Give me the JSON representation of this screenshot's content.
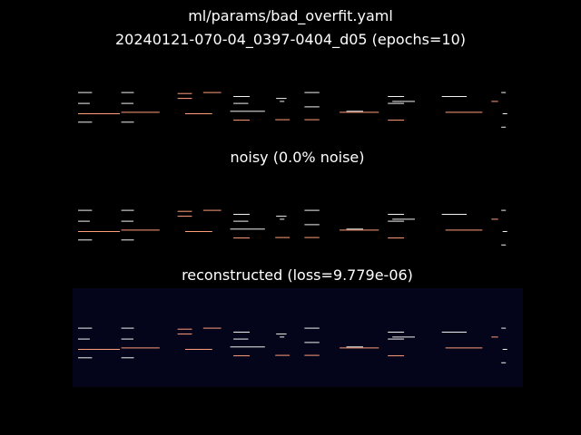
{
  "suptitle_line1": "ml/params/bad_overfit.yaml",
  "suptitle_line2": "20240121-070-04_0397-0404_d05 (epochs=10)",
  "chart_data": [
    {
      "type": "heatmap",
      "title": "",
      "rows": [
        {
          "r": 0.2,
          "segs": [
            [
              0.012,
              0.043,
              "#f2f2f2"
            ],
            [
              0.108,
              0.136,
              "#f2f2f2"
            ],
            [
              0.29,
              0.33,
              "#ff9e7a"
            ],
            [
              0.515,
              0.548,
              "#f2f2f2"
            ],
            [
              0.952,
              0.962,
              "#f2f2f2"
            ]
          ]
        },
        {
          "r": 0.22,
          "segs": [
            [
              0.233,
              0.265,
              "#ff9e7a"
            ]
          ]
        },
        {
          "r": 0.28,
          "segs": [
            [
              0.357,
              0.393,
              "#f2f2f2"
            ],
            [
              0.7,
              0.736,
              "#f2f2f2"
            ],
            [
              0.82,
              0.875,
              "#f2f2f2"
            ]
          ]
        },
        {
          "r": 0.32,
          "segs": [
            [
              0.233,
              0.265,
              "#ff9e7a"
            ],
            [
              0.452,
              0.475,
              "#f2f2f2"
            ]
          ]
        },
        {
          "r": 0.38,
          "segs": [
            [
              0.46,
              0.47,
              "#f2f2f2"
            ],
            [
              0.71,
              0.76,
              "#f2f2f2"
            ],
            [
              0.93,
              0.945,
              "#ff9e7a"
            ]
          ]
        },
        {
          "r": 0.42,
          "segs": [
            [
              0.012,
              0.038,
              "#f2f2f2"
            ],
            [
              0.108,
              0.135,
              "#f2f2f2"
            ],
            [
              0.357,
              0.39,
              "#f2f2f2"
            ],
            [
              0.7,
              0.736,
              "#f2f2f2"
            ]
          ]
        },
        {
          "r": 0.49,
          "segs": [
            [
              0.515,
              0.548,
              "#f2f2f2"
            ]
          ]
        },
        {
          "r": 0.58,
          "segs": [
            [
              0.35,
              0.427,
              "#f2f2f2"
            ],
            [
              0.608,
              0.645,
              "#f2f2f2"
            ]
          ]
        },
        {
          "r": 0.6,
          "segs": [
            [
              0.108,
              0.193,
              "#ff9e7a"
            ],
            [
              0.593,
              0.68,
              "#ff9e7a"
            ],
            [
              0.828,
              0.91,
              "#ff9e7a"
            ]
          ]
        },
        {
          "r": 0.63,
          "segs": [
            [
              0.012,
              0.105,
              "#ff9e7a"
            ],
            [
              0.25,
              0.31,
              "#ff9e7a"
            ],
            [
              0.955,
              0.965,
              "#f2f2f2"
            ]
          ]
        },
        {
          "r": 0.75,
          "segs": [
            [
              0.45,
              0.482,
              "#ff9e7a"
            ],
            [
              0.515,
              0.548,
              "#ff9e7a"
            ]
          ]
        },
        {
          "r": 0.76,
          "segs": [
            [
              0.357,
              0.393,
              "#ff9e7a"
            ],
            [
              0.7,
              0.736,
              "#ff9e7a"
            ]
          ]
        },
        {
          "r": 0.8,
          "segs": [
            [
              0.012,
              0.043,
              "#f2f2f2"
            ],
            [
              0.108,
              0.136,
              "#f2f2f2"
            ]
          ]
        },
        {
          "r": 0.9,
          "segs": [
            [
              0.952,
              0.962,
              "#f2f2f2"
            ]
          ]
        }
      ]
    },
    {
      "type": "heatmap",
      "title": "noisy (0.0% noise)",
      "rows": "same-as-first"
    },
    {
      "type": "heatmap",
      "title": "reconstructed (loss=9.779e-06)",
      "rows": "same-as-first"
    }
  ]
}
